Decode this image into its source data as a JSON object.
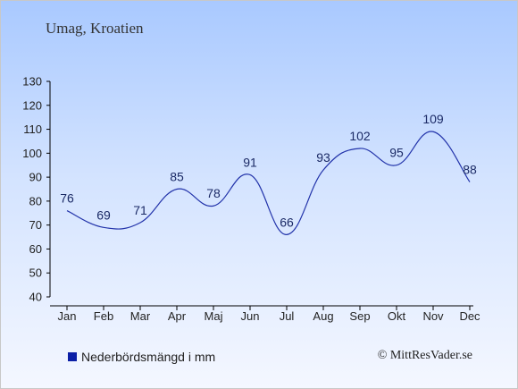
{
  "title": "Umag, Kroatien",
  "credit": "© MittResVader.se",
  "legend": {
    "label": "Nederbördsmängd i mm",
    "color": "#0b1fa6"
  },
  "chart_data": {
    "type": "line",
    "categories": [
      "Jan",
      "Feb",
      "Mar",
      "Apr",
      "Maj",
      "Jun",
      "Jul",
      "Aug",
      "Sep",
      "Okt",
      "Nov",
      "Dec"
    ],
    "series": [
      {
        "name": "Nederbördsmängd i mm",
        "values": [
          76,
          69,
          71,
          85,
          78,
          91,
          66,
          93,
          102,
          95,
          109,
          88
        ]
      }
    ],
    "ylim": [
      40,
      130
    ],
    "yticks": [
      40,
      50,
      60,
      70,
      80,
      90,
      100,
      110,
      120,
      130
    ],
    "grid": false,
    "legend_position": "bottom-left",
    "line_color": "#2233aa"
  }
}
